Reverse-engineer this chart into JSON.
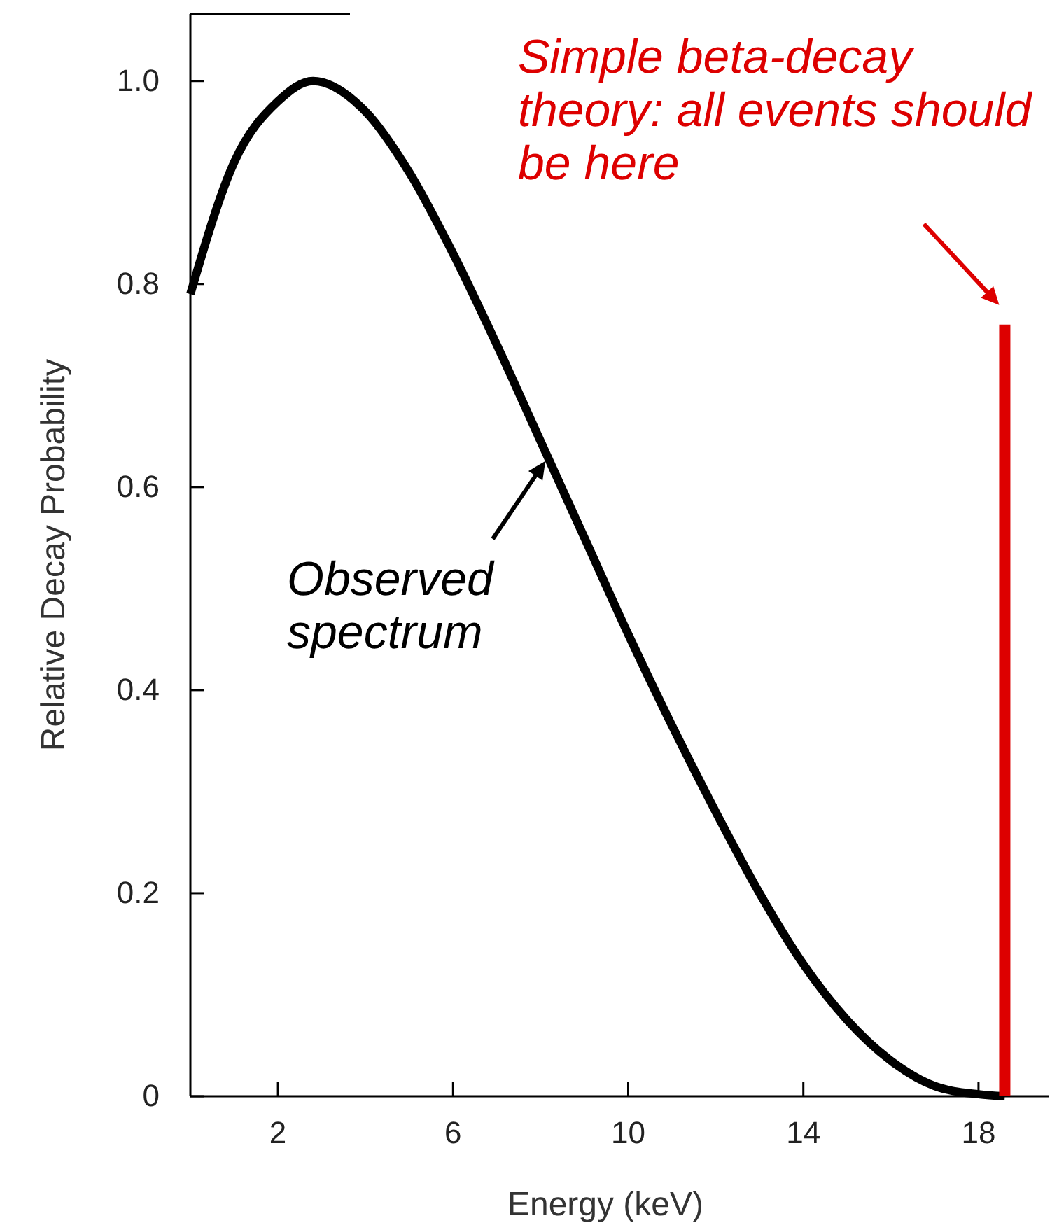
{
  "chart_data": {
    "type": "line",
    "xlabel": "Energy (keV)",
    "ylabel": "Relative Decay Probability",
    "xlim": [
      0,
      19.6
    ],
    "ylim": [
      0,
      1.066
    ],
    "xticks": [
      2,
      6,
      10,
      14,
      18
    ],
    "yticks": [
      0,
      0.2,
      0.4,
      0.6,
      0.8,
      {
        "value": 1,
        "label": "1.0"
      }
    ],
    "marker": "none",
    "line_style": "solid",
    "series": [
      {
        "color": "#000000",
        "x": [
          0,
          1,
          2,
          2.8,
          4,
          5,
          6,
          7,
          8,
          9,
          10,
          11,
          12,
          13,
          14,
          15,
          16,
          17,
          18,
          18.6
        ],
        "values": [
          0.79,
          0.92,
          0.98,
          1.0,
          0.97,
          0.91,
          0.83,
          0.74,
          0.645,
          0.55,
          0.455,
          0.365,
          0.28,
          0.2,
          0.13,
          0.075,
          0.035,
          0.01,
          0.002,
          0
        ]
      },
      {
        "color": "#dd0000",
        "x": [
          18.6,
          18.6
        ],
        "values": [
          0,
          0.76
        ]
      }
    ],
    "annotations": [
      {
        "text": "Observed spectrum",
        "x": 8.3,
        "y": 0.62
      },
      {
        "text": "Simple beta-decay theory: all events should be here",
        "x": 18.6,
        "y": 0.76
      }
    ]
  }
}
